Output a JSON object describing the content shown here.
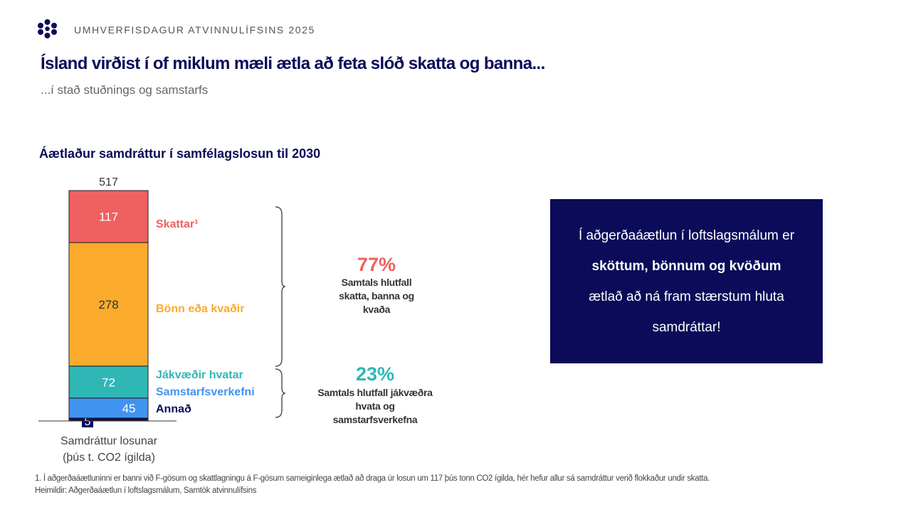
{
  "header": {
    "event": "UMHVERFISDAGUR ATVINNULÍFSINS 2025",
    "title": "Ísland virðist í of miklum mæli ætla að feta slóð skatta og banna...",
    "subtitle": "...í stað stuðnings og samstarfs"
  },
  "colors": {
    "brand_navy": "#0b0b5a",
    "skattar": "#f06060",
    "bonn": "#fbab2c",
    "jakvaedir": "#2fb7b5",
    "samstarf": "#4094f0",
    "annad": "#0b0b5a"
  },
  "chart_data": {
    "type": "bar",
    "title": "Áætlaður samdráttur í samfélagslosun til 2030",
    "xlabel_lines": [
      "Samdráttur losunar",
      "(þús t. CO2 ígilda)"
    ],
    "total": 517,
    "ylim": [
      0,
      517
    ],
    "series": [
      {
        "name": "Annað",
        "label": "Annað",
        "value": 5,
        "color": "#0b0b5a",
        "text_color": "#0b0b5a"
      },
      {
        "name": "Samstarfsverkefni",
        "label": "Samstarfsverkefni",
        "value": 45,
        "color": "#4094f0",
        "text_color": "#4094f0"
      },
      {
        "name": "Jákvæðir hvatar",
        "label": "Jákvæðir hvatar",
        "value": 72,
        "color": "#2fb7b5",
        "text_color": "#2fb7b5"
      },
      {
        "name": "Bönn eða kvaðir",
        "label": "Bönn eða kvaðir",
        "value": 278,
        "color": "#fbab2c",
        "text_color": "#fbab2c"
      },
      {
        "name": "Skattar",
        "label": "Skattar¹",
        "value": 117,
        "color": "#f06060",
        "text_color": "#f06060"
      }
    ],
    "annotations": [
      {
        "percent": "77%",
        "color": "#f06060",
        "text_lines": [
          "Samtals hlutfall",
          "skatta, banna og",
          "kvaða"
        ]
      },
      {
        "percent": "23%",
        "color": "#2fb7b5",
        "text_lines": [
          "Samtals hlutfall jákvæðra",
          "hvata og",
          "samstarfsverkefna"
        ]
      }
    ]
  },
  "callout": {
    "line1": "Í aðgerðaáætlun í loftslagsmálum er",
    "line2": "sköttum, bönnum og kvöðum",
    "line3": "ætlað að ná fram stærstum hluta",
    "line4": "samdráttar!"
  },
  "footnote": {
    "note": "1. Í aðgerðaáætluninni er banni við F-gösum og skattlagningu á F-gösum sameiginlega ætlað að draga úr losun um 117 þús tonn CO2 ígilda, hér hefur allur sá samdráttur verið flokkaður undir skatta.",
    "sources": "Heimildir: Aðgerðaáætlun í loftslagsmálum, Samtök atvinnulífsins"
  }
}
